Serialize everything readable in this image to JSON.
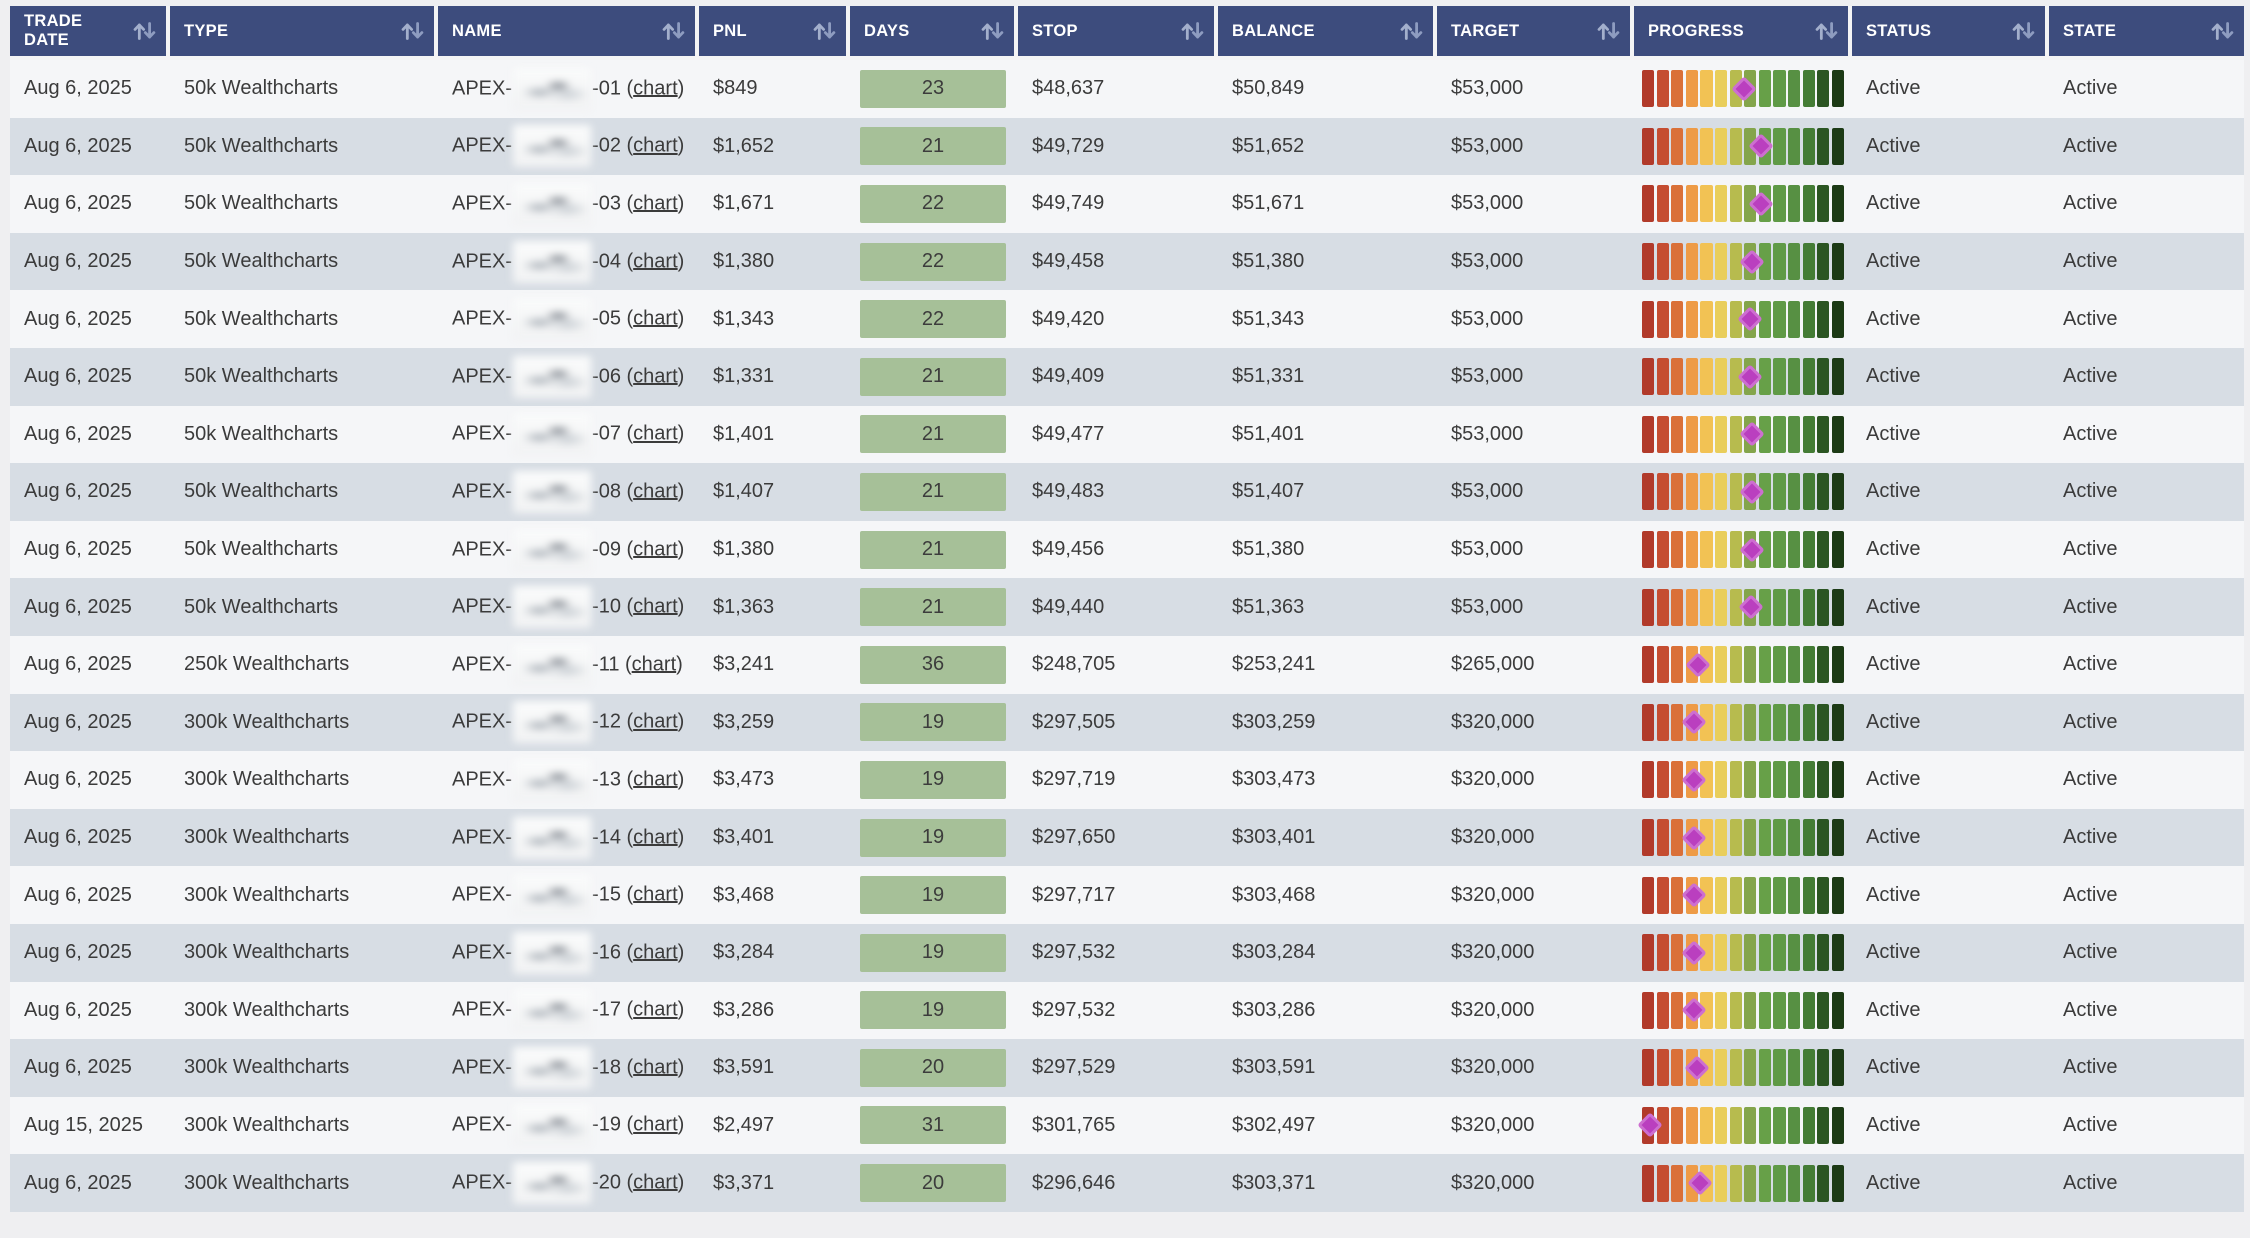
{
  "labels": {
    "paren_open": " (",
    "paren_close": ")"
  },
  "colors": {
    "header_bg": "#3d4c7d",
    "header_text": "#ffffff",
    "row_light": "#f5f6f8",
    "row_striped": "#d7dde4",
    "body_text": "#3b3b3b",
    "days_badge_bg": "#a6c098",
    "marker": "#ba3fbf",
    "page_bg": "#efeff1"
  },
  "progress_palette": [
    "#b13a2a",
    "#c54d31",
    "#da7038",
    "#ee9b46",
    "#f2c254",
    "#e9ce5b",
    "#b7bb4e",
    "#84a54b",
    "#67a048",
    "#5f9a46",
    "#579043",
    "#447c35",
    "#2b5522",
    "#1c3a15"
  ],
  "table": {
    "columns": [
      {
        "key": "trade_date",
        "label": "TRADE DATE"
      },
      {
        "key": "type",
        "label": "TYPE"
      },
      {
        "key": "name",
        "label": "NAME"
      },
      {
        "key": "pnl",
        "label": "PNL"
      },
      {
        "key": "days",
        "label": "DAYS"
      },
      {
        "key": "stop",
        "label": "STOP"
      },
      {
        "key": "balance",
        "label": "BALANCE"
      },
      {
        "key": "target",
        "label": "TARGET"
      },
      {
        "key": "progress",
        "label": "PROGRESS"
      },
      {
        "key": "status",
        "label": "STATUS"
      },
      {
        "key": "state",
        "label": "STATE"
      }
    ],
    "rows": [
      {
        "trade_date": "Aug 6, 2025",
        "type": "50k Wealthcharts",
        "name_prefix": "APEX-",
        "name_redacted": true,
        "name_suffix": "-01",
        "chart_label": "chart",
        "pnl": "$849",
        "days": "23",
        "stop": "$48,637",
        "balance": "$50,849",
        "target": "$53,000",
        "progress": 0.507,
        "status": "Active",
        "state": "Active"
      },
      {
        "trade_date": "Aug 6, 2025",
        "type": "50k Wealthcharts",
        "name_prefix": "APEX-",
        "name_redacted": true,
        "name_suffix": "-02",
        "chart_label": "chart",
        "pnl": "$1,652",
        "days": "21",
        "stop": "$49,729",
        "balance": "$51,652",
        "target": "$53,000",
        "progress": 0.588,
        "status": "Active",
        "state": "Active"
      },
      {
        "trade_date": "Aug 6, 2025",
        "type": "50k Wealthcharts",
        "name_prefix": "APEX-",
        "name_redacted": true,
        "name_suffix": "-03",
        "chart_label": "chart",
        "pnl": "$1,671",
        "days": "22",
        "stop": "$49,749",
        "balance": "$51,671",
        "target": "$53,000",
        "progress": 0.591,
        "status": "Active",
        "state": "Active"
      },
      {
        "trade_date": "Aug 6, 2025",
        "type": "50k Wealthcharts",
        "name_prefix": "APEX-",
        "name_redacted": true,
        "name_suffix": "-04",
        "chart_label": "chart",
        "pnl": "$1,380",
        "days": "22",
        "stop": "$49,458",
        "balance": "$51,380",
        "target": "$53,000",
        "progress": 0.543,
        "status": "Active",
        "state": "Active"
      },
      {
        "trade_date": "Aug 6, 2025",
        "type": "50k Wealthcharts",
        "name_prefix": "APEX-",
        "name_redacted": true,
        "name_suffix": "-05",
        "chart_label": "chart",
        "pnl": "$1,343",
        "days": "22",
        "stop": "$49,420",
        "balance": "$51,343",
        "target": "$53,000",
        "progress": 0.537,
        "status": "Active",
        "state": "Active"
      },
      {
        "trade_date": "Aug 6, 2025",
        "type": "50k Wealthcharts",
        "name_prefix": "APEX-",
        "name_redacted": true,
        "name_suffix": "-06",
        "chart_label": "chart",
        "pnl": "$1,331",
        "days": "21",
        "stop": "$49,409",
        "balance": "$51,331",
        "target": "$53,000",
        "progress": 0.535,
        "status": "Active",
        "state": "Active"
      },
      {
        "trade_date": "Aug 6, 2025",
        "type": "50k Wealthcharts",
        "name_prefix": "APEX-",
        "name_redacted": true,
        "name_suffix": "-07",
        "chart_label": "chart",
        "pnl": "$1,401",
        "days": "21",
        "stop": "$49,477",
        "balance": "$51,401",
        "target": "$53,000",
        "progress": 0.546,
        "status": "Active",
        "state": "Active"
      },
      {
        "trade_date": "Aug 6, 2025",
        "type": "50k Wealthcharts",
        "name_prefix": "APEX-",
        "name_redacted": true,
        "name_suffix": "-08",
        "chart_label": "chart",
        "pnl": "$1,407",
        "days": "21",
        "stop": "$49,483",
        "balance": "$51,407",
        "target": "$53,000",
        "progress": 0.547,
        "status": "Active",
        "state": "Active"
      },
      {
        "trade_date": "Aug 6, 2025",
        "type": "50k Wealthcharts",
        "name_prefix": "APEX-",
        "name_redacted": true,
        "name_suffix": "-09",
        "chart_label": "chart",
        "pnl": "$1,380",
        "days": "21",
        "stop": "$49,456",
        "balance": "$51,380",
        "target": "$53,000",
        "progress": 0.543,
        "status": "Active",
        "state": "Active"
      },
      {
        "trade_date": "Aug 6, 2025",
        "type": "50k Wealthcharts",
        "name_prefix": "APEX-",
        "name_redacted": true,
        "name_suffix": "-10",
        "chart_label": "chart",
        "pnl": "$1,363",
        "days": "21",
        "stop": "$49,440",
        "balance": "$51,363",
        "target": "$53,000",
        "progress": 0.54,
        "status": "Active",
        "state": "Active"
      },
      {
        "trade_date": "Aug 6, 2025",
        "type": "250k Wealthcharts",
        "name_prefix": "APEX-",
        "name_redacted": true,
        "name_suffix": "-11",
        "chart_label": "chart",
        "pnl": "$3,241",
        "days": "36",
        "stop": "$248,705",
        "balance": "$253,241",
        "target": "$265,000",
        "progress": 0.278,
        "status": "Active",
        "state": "Active"
      },
      {
        "trade_date": "Aug 6, 2025",
        "type": "300k Wealthcharts",
        "name_prefix": "APEX-",
        "name_redacted": true,
        "name_suffix": "-12",
        "chart_label": "chart",
        "pnl": "$3,259",
        "days": "19",
        "stop": "$297,505",
        "balance": "$303,259",
        "target": "$320,000",
        "progress": 0.256,
        "status": "Active",
        "state": "Active"
      },
      {
        "trade_date": "Aug 6, 2025",
        "type": "300k Wealthcharts",
        "name_prefix": "APEX-",
        "name_redacted": true,
        "name_suffix": "-13",
        "chart_label": "chart",
        "pnl": "$3,473",
        "days": "19",
        "stop": "$297,719",
        "balance": "$303,473",
        "target": "$320,000",
        "progress": 0.258,
        "status": "Active",
        "state": "Active"
      },
      {
        "trade_date": "Aug 6, 2025",
        "type": "300k Wealthcharts",
        "name_prefix": "APEX-",
        "name_redacted": true,
        "name_suffix": "-14",
        "chart_label": "chart",
        "pnl": "$3,401",
        "days": "19",
        "stop": "$297,650",
        "balance": "$303,401",
        "target": "$320,000",
        "progress": 0.257,
        "status": "Active",
        "state": "Active"
      },
      {
        "trade_date": "Aug 6, 2025",
        "type": "300k Wealthcharts",
        "name_prefix": "APEX-",
        "name_redacted": true,
        "name_suffix": "-15",
        "chart_label": "chart",
        "pnl": "$3,468",
        "days": "19",
        "stop": "$297,717",
        "balance": "$303,468",
        "target": "$320,000",
        "progress": 0.258,
        "status": "Active",
        "state": "Active"
      },
      {
        "trade_date": "Aug 6, 2025",
        "type": "300k Wealthcharts",
        "name_prefix": "APEX-",
        "name_redacted": true,
        "name_suffix": "-16",
        "chart_label": "chart",
        "pnl": "$3,284",
        "days": "19",
        "stop": "$297,532",
        "balance": "$303,284",
        "target": "$320,000",
        "progress": 0.256,
        "status": "Active",
        "state": "Active"
      },
      {
        "trade_date": "Aug 6, 2025",
        "type": "300k Wealthcharts",
        "name_prefix": "APEX-",
        "name_redacted": true,
        "name_suffix": "-17",
        "chart_label": "chart",
        "pnl": "$3,286",
        "days": "19",
        "stop": "$297,532",
        "balance": "$303,286",
        "target": "$320,000",
        "progress": 0.256,
        "status": "Active",
        "state": "Active"
      },
      {
        "trade_date": "Aug 6, 2025",
        "type": "300k Wealthcharts",
        "name_prefix": "APEX-",
        "name_redacted": true,
        "name_suffix": "-18",
        "chart_label": "chart",
        "pnl": "$3,591",
        "days": "20",
        "stop": "$297,529",
        "balance": "$303,591",
        "target": "$320,000",
        "progress": 0.27,
        "status": "Active",
        "state": "Active"
      },
      {
        "trade_date": "Aug 15, 2025",
        "type": "300k Wealthcharts",
        "name_prefix": "APEX-",
        "name_redacted": true,
        "name_suffix": "-19",
        "chart_label": "chart",
        "pnl": "$2,497",
        "days": "31",
        "stop": "$301,765",
        "balance": "$302,497",
        "target": "$320,000",
        "progress": 0.04,
        "status": "Active",
        "state": "Active"
      },
      {
        "trade_date": "Aug 6, 2025",
        "type": "300k Wealthcharts",
        "name_prefix": "APEX-",
        "name_redacted": true,
        "name_suffix": "-20",
        "chart_label": "chart",
        "pnl": "$3,371",
        "days": "20",
        "stop": "$296,646",
        "balance": "$303,371",
        "target": "$320,000",
        "progress": 0.288,
        "status": "Active",
        "state": "Active"
      }
    ]
  }
}
